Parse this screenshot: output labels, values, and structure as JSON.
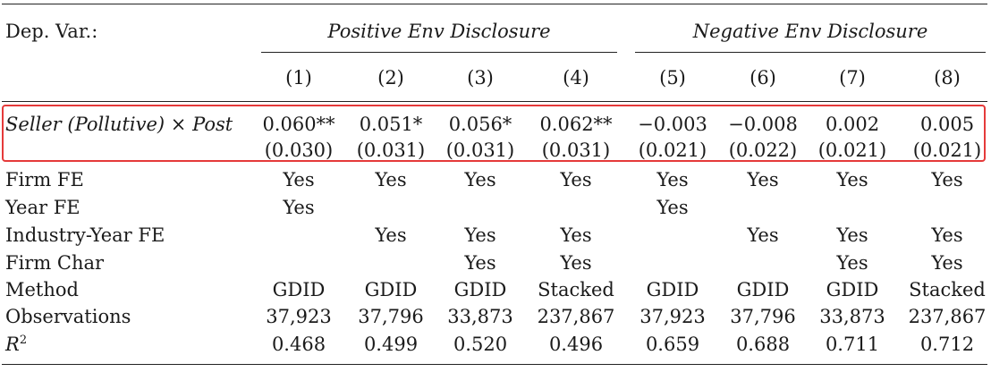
{
  "header": {
    "dep_var_label": "Dep. Var.:",
    "group_left": "Positive Env Disclosure",
    "group_right": "Negative Env Disclosure",
    "columns": [
      "(1)",
      "(2)",
      "(3)",
      "(4)",
      "(5)",
      "(6)",
      "(7)",
      "(8)"
    ]
  },
  "key_row": {
    "label_a": "Seller (Pollutive)",
    "label_times": "×",
    "label_b": "Post",
    "coefs": [
      "0.060**",
      "0.051*",
      "0.056*",
      "0.062**",
      "−0.003",
      "−0.008",
      "0.002",
      "0.005"
    ],
    "ses": [
      "(0.030)",
      "(0.031)",
      "(0.031)",
      "(0.031)",
      "(0.021)",
      "(0.022)",
      "(0.021)",
      "(0.021)"
    ]
  },
  "rows": [
    {
      "label": "Firm FE",
      "values": [
        "Yes",
        "Yes",
        "Yes",
        "Yes",
        "Yes",
        "Yes",
        "Yes",
        "Yes"
      ]
    },
    {
      "label": "Year FE",
      "values": [
        "Yes",
        "",
        "",
        "",
        "Yes",
        "",
        "",
        ""
      ]
    },
    {
      "label": "Industry-Year FE",
      "values": [
        "",
        "Yes",
        "Yes",
        "Yes",
        "",
        "Yes",
        "Yes",
        "Yes"
      ]
    },
    {
      "label": "Firm Char",
      "values": [
        "",
        "",
        "Yes",
        "Yes",
        "",
        "",
        "Yes",
        "Yes"
      ]
    },
    {
      "label": "Method",
      "values": [
        "GDID",
        "GDID",
        "GDID",
        "Stacked",
        "GDID",
        "GDID",
        "GDID",
        "Stacked"
      ]
    },
    {
      "label": "Observations",
      "values": [
        "37,923",
        "37,796",
        "33,873",
        "237,867",
        "37,923",
        "37,796",
        "33,873",
        "237,867"
      ]
    }
  ],
  "r2_row": {
    "label_base": "R",
    "label_sup": "2",
    "values": [
      "0.468",
      "0.499",
      "0.520",
      "0.496",
      "0.659",
      "0.688",
      "0.711",
      "0.712"
    ]
  },
  "colors": {
    "text": "#1a1a1a",
    "highlight_border": "#e53a3a"
  }
}
